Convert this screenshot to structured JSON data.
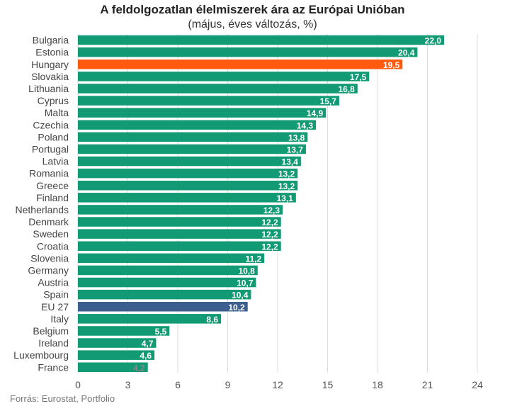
{
  "title": "A feldolgozatlan élelmiszerek ára az Európai Unióban",
  "subtitle": "(május, éves változás, %)",
  "source": "Forrás: Eurostat, Portfolio",
  "colors": {
    "default": "#119A74",
    "hungary": "#FF5A0E",
    "eu": "#3C5F8E",
    "grid": "#dddddd",
    "label_inside": "#ffffff",
    "label_outside": "#888888"
  },
  "chart_data": {
    "type": "bar",
    "orientation": "horizontal",
    "categories": [
      "Bulgaria",
      "Estonia",
      "Hungary",
      "Slovakia",
      "Lithuania",
      "Cyprus",
      "Malta",
      "Czechia",
      "Poland",
      "Portugal",
      "Latvia",
      "Romania",
      "Greece",
      "Finland",
      "Netherlands",
      "Denmark",
      "Sweden",
      "Croatia",
      "Slovenia",
      "Germany",
      "Austria",
      "Spain",
      "EU 27",
      "Italy",
      "Belgium",
      "Ireland",
      "Luxembourg",
      "France"
    ],
    "values": [
      22.0,
      20.4,
      19.5,
      17.5,
      16.8,
      15.7,
      14.9,
      14.3,
      13.8,
      13.7,
      13.4,
      13.2,
      13.2,
      13.1,
      12.3,
      12.2,
      12.2,
      12.2,
      11.2,
      10.8,
      10.7,
      10.4,
      10.2,
      8.6,
      5.5,
      4.7,
      4.6,
      4.2
    ],
    "labels": [
      "22,0",
      "20,4",
      "19,5",
      "17,5",
      "16,8",
      "15,7",
      "14,9",
      "14,3",
      "13,8",
      "13,7",
      "13,4",
      "13,2",
      "13,2",
      "13,1",
      "12,3",
      "12,2",
      "12,2",
      "12,2",
      "11,2",
      "10,8",
      "10,7",
      "10,4",
      "10,2",
      "8,6",
      "5,5",
      "4,7",
      "4,6",
      "4,2"
    ],
    "highlight": {
      "Hungary": "hungary",
      "EU 27": "eu"
    },
    "xlim": [
      0,
      24
    ],
    "xticks": [
      0,
      3,
      6,
      9,
      12,
      15,
      18,
      21,
      24
    ],
    "xtick_labels": [
      "0",
      "3",
      "6",
      "9",
      "12",
      "15",
      "18",
      "21",
      "24"
    ],
    "grid": true,
    "legend": "none",
    "xlabel": "",
    "ylabel": ""
  }
}
